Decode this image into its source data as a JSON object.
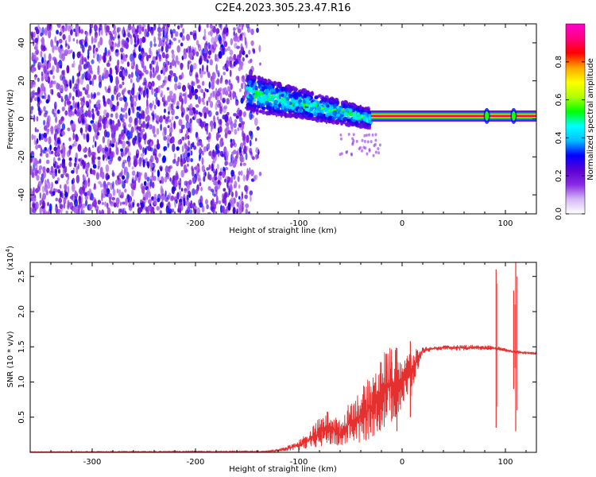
{
  "title": "C2E4.2023.305.23.47.R16",
  "chart_data": [
    {
      "type": "heatmap",
      "xlabel": "Height of straight line (km)",
      "ylabel": "Frequency (Hz)",
      "xlim": [
        -360,
        130
      ],
      "ylim": [
        -50,
        50
      ],
      "xticks": [
        -300,
        -200,
        -100,
        0,
        100
      ],
      "yticks": [
        -40,
        -20,
        0,
        20,
        40
      ],
      "grid": false,
      "features": {
        "noise_floor_x_range": [
          -360,
          -140
        ],
        "noise_frequency_range": [
          -50,
          50
        ],
        "transition_band": {
          "x": [
            -150,
            -30
          ],
          "freq_center_start": 14,
          "freq_center_end": 0,
          "halfwidth_start": 6,
          "halfwidth_end": 3
        },
        "carrier": {
          "x": [
            -30,
            130
          ],
          "frequency": 1.5,
          "bright_spots_x": [
            82,
            108
          ]
        }
      },
      "colorbar": {
        "label": "Normalized spectral amplitude",
        "range": [
          0.0,
          1.0
        ],
        "ticks": [
          "0.0",
          "0.2",
          "0.4",
          "0.6",
          "0.8"
        ],
        "colormap": [
          "#ffffff",
          "#d6b8f5",
          "#8a2be2",
          "#5b00d6",
          "#0000ff",
          "#00bfff",
          "#00ffff",
          "#00ff00",
          "#b0ff00",
          "#ffff00",
          "#ffa500",
          "#ff0000",
          "#ff007f",
          "#ff00cc"
        ]
      }
    },
    {
      "type": "line",
      "xlabel": "Height of straight line (km)",
      "ylabel": "SNR (10 * v/v)",
      "y_multiplier": "(x10",
      "y_multiplier_exp": "4",
      "y_multiplier_close": ")",
      "xlim": [
        -360,
        130
      ],
      "ylim": [
        0,
        2.7
      ],
      "xticks": [
        -300,
        -200,
        -100,
        0,
        100
      ],
      "yticks": [
        0.5,
        1.0,
        1.5,
        2.0,
        2.5
      ],
      "grid": false,
      "color": "#e53030",
      "series": [
        {
          "envelope": {
            "x": [
              -360,
              -130,
              -120,
              -110,
              -100,
              -90,
              -80,
              -70,
              -60,
              -50,
              -40,
              -30,
              -20,
              -10,
              0,
              10,
              20,
              30,
              40,
              50,
              60,
              70,
              80,
              85,
              95,
              100,
              105,
              110,
              115,
              120,
              130
            ],
            "min": [
              0.0,
              0.0,
              0.01,
              0.02,
              0.03,
              0.05,
              0.06,
              0.1,
              0.05,
              0.15,
              0.1,
              0.2,
              0.3,
              0.4,
              0.6,
              0.9,
              1.4,
              1.45,
              1.45,
              1.45,
              1.44,
              1.45,
              1.45,
              1.45,
              1.44,
              1.43,
              1.42,
              1.4,
              1.4,
              1.4,
              1.38
            ],
            "max": [
              0.01,
              0.02,
              0.05,
              0.1,
              0.18,
              0.3,
              0.5,
              0.62,
              0.45,
              0.75,
              0.9,
              1.1,
              1.4,
              1.55,
              1.4,
              1.45,
              1.5,
              1.5,
              1.52,
              1.52,
              1.53,
              1.53,
              1.52,
              1.52,
              1.5,
              1.48,
              1.46,
              1.45,
              1.44,
              1.43,
              1.43
            ]
          },
          "spikes": [
            {
              "x": 91,
              "max": 2.6,
              "min": 0.35
            },
            {
              "x": 110,
              "max": 2.7,
              "min": 0.3
            },
            {
              "x": 108,
              "max": 2.3,
              "min": 0.9
            },
            {
              "x": -5,
              "max": 1.48,
              "min": 0.3
            },
            {
              "x": 8,
              "max": 1.58,
              "min": 0.5
            }
          ]
        }
      ]
    }
  ]
}
